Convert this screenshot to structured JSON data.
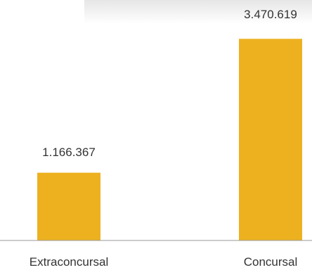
{
  "chart_data": {
    "type": "bar",
    "categories": [
      "Extraconcursal",
      "Concursal"
    ],
    "values": [
      1166367,
      3470619
    ],
    "value_labels": [
      "1.166.367",
      "3.470.619"
    ],
    "ylim": [
      0,
      3800000
    ],
    "grid": false,
    "legend": "none",
    "colors": {
      "bar": "#EDB120",
      "axis": "#999999",
      "text": "#333333"
    }
  }
}
